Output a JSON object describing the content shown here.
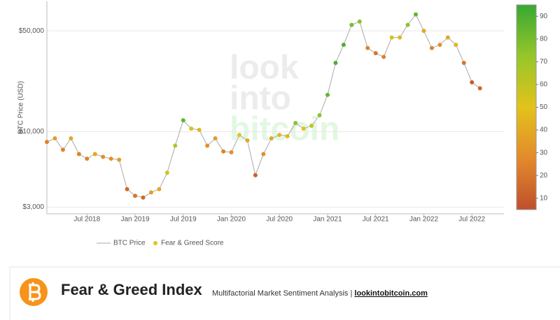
{
  "chart_data": {
    "type": "scatter",
    "y_label": "BTC Price (USD)",
    "watermark": [
      "look",
      "into",
      "bitcoin"
    ],
    "log_y": true,
    "grid": true,
    "x": [
      "2018-02",
      "2018-03",
      "2018-04",
      "2018-05",
      "2018-06",
      "2018-07",
      "2018-08",
      "2018-09",
      "2018-10",
      "2018-11",
      "2018-12",
      "2019-01",
      "2019-02",
      "2019-03",
      "2019-04",
      "2019-05",
      "2019-06",
      "2019-07",
      "2019-08",
      "2019-09",
      "2019-10",
      "2019-11",
      "2019-12",
      "2020-01",
      "2020-02",
      "2020-03",
      "2020-04",
      "2020-05",
      "2020-06",
      "2020-07",
      "2020-08",
      "2020-09",
      "2020-10",
      "2020-11",
      "2020-12",
      "2021-01",
      "2021-02",
      "2021-03",
      "2021-04",
      "2021-05",
      "2021-06",
      "2021-07",
      "2021-08",
      "2021-09",
      "2021-10",
      "2021-11",
      "2021-12",
      "2022-01",
      "2022-02",
      "2022-03",
      "2022-04",
      "2022-05",
      "2022-06",
      "2022-07",
      "2022-08"
    ],
    "series": [
      {
        "name": "BTC Price",
        "color": "#aaaaaa",
        "values": [
          8500,
          9000,
          7500,
          9000,
          7000,
          6500,
          7000,
          6700,
          6500,
          6400,
          4000,
          3600,
          3500,
          3800,
          4000,
          5200,
          8000,
          12000,
          10500,
          10300,
          8000,
          9000,
          7300,
          7200,
          9500,
          8700,
          5000,
          7000,
          9000,
          9500,
          9300,
          11500,
          10500,
          11000,
          13000,
          18000,
          30000,
          40000,
          55000,
          58000,
          38000,
          35000,
          33000,
          45000,
          45000,
          55000,
          65000,
          50000,
          38000,
          40000,
          45000,
          40000,
          30000,
          22000,
          20000
        ]
      }
    ],
    "color_scale": {
      "name": "Fear & Greed Score",
      "values": [
        25,
        35,
        25,
        40,
        25,
        25,
        40,
        30,
        30,
        35,
        15,
        20,
        15,
        35,
        40,
        55,
        65,
        85,
        55,
        45,
        30,
        35,
        25,
        30,
        50,
        40,
        12,
        30,
        40,
        45,
        45,
        75,
        50,
        60,
        75,
        85,
        90,
        90,
        80,
        75,
        25,
        20,
        25,
        55,
        45,
        75,
        85,
        40,
        25,
        30,
        40,
        45,
        20,
        10,
        15
      ],
      "zlim": [
        5,
        95
      ],
      "ticks": [
        10,
        20,
        30,
        40,
        50,
        60,
        70,
        80,
        90
      ],
      "colors": [
        "#bf4f2c",
        "#e38a2b",
        "#e3c21c",
        "#96c62a",
        "#38a833"
      ]
    },
    "xlim": [
      "2018-02",
      "2022-11"
    ],
    "xticks": [
      {
        "value": "2018-07",
        "label": "Jul 2018"
      },
      {
        "value": "2019-01",
        "label": "Jan 2019"
      },
      {
        "value": "2019-07",
        "label": "Jul 2019"
      },
      {
        "value": "2020-01",
        "label": "Jan 2020"
      },
      {
        "value": "2020-07",
        "label": "Jul 2020"
      },
      {
        "value": "2021-01",
        "label": "Jan 2021"
      },
      {
        "value": "2021-07",
        "label": "Jul 2021"
      },
      {
        "value": "2022-01",
        "label": "Jan 2022"
      },
      {
        "value": "2022-07",
        "label": "Jul 2022"
      }
    ],
    "ylim": [
      2700,
      80000
    ],
    "yticks": [
      {
        "value": 3000,
        "label": "$3,000"
      },
      {
        "value": 10000,
        "label": "$10,000"
      },
      {
        "value": 50000,
        "label": "$50,000"
      }
    ]
  },
  "footer": {
    "title": "Fear & Greed Index",
    "subtitle": "Multifactorial Market Sentiment Analysis | ",
    "link": "lookintobitcoin.com"
  }
}
